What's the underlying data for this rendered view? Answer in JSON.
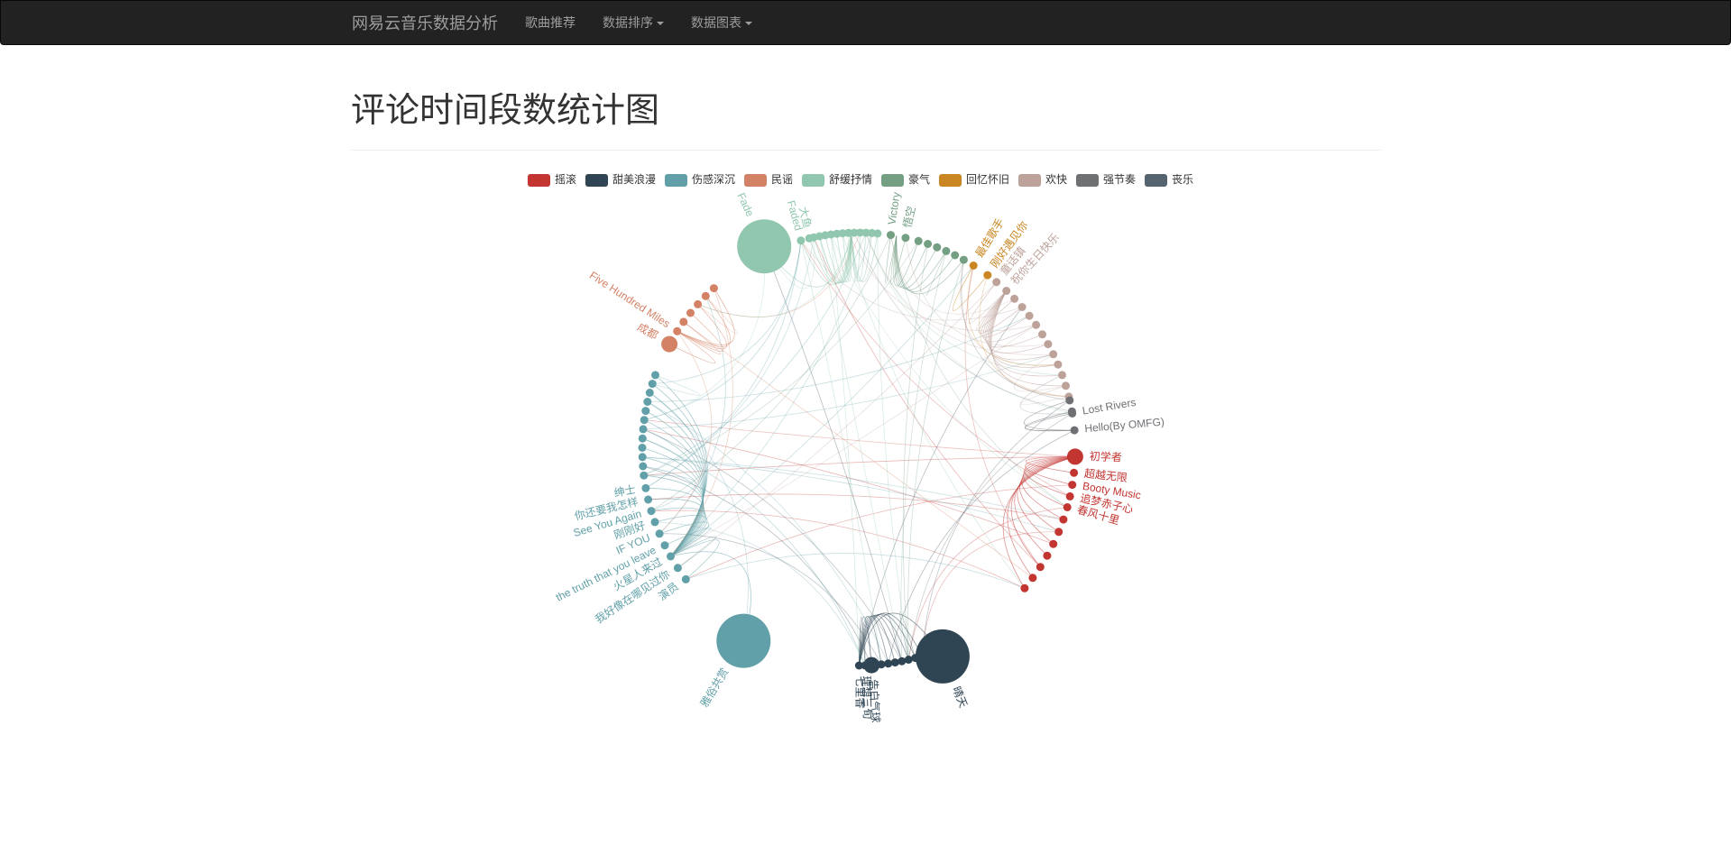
{
  "navbar": {
    "brand": "网易云音乐数据分析",
    "items": [
      {
        "label": "歌曲推荐",
        "dropdown": false
      },
      {
        "label": "数据排序",
        "dropdown": true
      },
      {
        "label": "数据图表",
        "dropdown": true
      }
    ]
  },
  "page": {
    "title": "评论时间段数统计图"
  },
  "chart_data": {
    "type": "graph-circular",
    "legend_position": "top",
    "categories": [
      {
        "name": "摇滚",
        "color": "#c23531"
      },
      {
        "name": "甜美浪漫",
        "color": "#2f4554"
      },
      {
        "name": "伤感深沉",
        "color": "#61a0a8"
      },
      {
        "name": "民谣",
        "color": "#d48265"
      },
      {
        "name": "舒缓抒情",
        "color": "#91c7ae"
      },
      {
        "name": "豪气",
        "color": "#749f83"
      },
      {
        "name": "回忆怀旧",
        "color": "#ca8622"
      },
      {
        "name": "欢快",
        "color": "#bda29a"
      },
      {
        "name": "强节奏",
        "color": "#6e7074"
      },
      {
        "name": "丧乐",
        "color": "#546570"
      }
    ],
    "labeled_nodes": [
      {
        "name": "初学者",
        "category": "摇滚",
        "size": "medium"
      },
      {
        "name": "超越无限",
        "category": "摇滚",
        "size": "small"
      },
      {
        "name": "Booty Music",
        "category": "摇滚",
        "size": "small"
      },
      {
        "name": "追梦赤子心",
        "category": "摇滚",
        "size": "small"
      },
      {
        "name": "春风十里",
        "category": "摇滚",
        "size": "small"
      },
      {
        "name": "晴天",
        "category": "甜美浪漫",
        "size": "large"
      },
      {
        "name": "告白气球",
        "category": "甜美浪漫",
        "size": "medium"
      },
      {
        "name": "理想三旬",
        "category": "甜美浪漫",
        "size": "small"
      },
      {
        "name": "七里香",
        "category": "甜美浪漫",
        "size": "small"
      },
      {
        "name": "雅俗共赏",
        "category": "伤感深沉",
        "size": "large"
      },
      {
        "name": "演员",
        "category": "伤感深沉",
        "size": "small"
      },
      {
        "name": "我好像在哪见过你",
        "category": "伤感深沉",
        "size": "small"
      },
      {
        "name": "火星人来过",
        "category": "伤感深沉",
        "size": "small"
      },
      {
        "name": "the truth that you leave",
        "category": "伤感深沉",
        "size": "small"
      },
      {
        "name": "IF YOU",
        "category": "伤感深沉",
        "size": "small"
      },
      {
        "name": "刚刚好",
        "category": "伤感深沉",
        "size": "small"
      },
      {
        "name": "See You Again",
        "category": "伤感深沉",
        "size": "small"
      },
      {
        "name": "你还要我怎样",
        "category": "伤感深沉",
        "size": "small"
      },
      {
        "name": "绅士",
        "category": "伤感深沉",
        "size": "small"
      },
      {
        "name": "成都",
        "category": "民谣",
        "size": "medium"
      },
      {
        "name": "Five Hundred Miles",
        "category": "民谣",
        "size": "small"
      },
      {
        "name": "Fade",
        "category": "舒缓抒情",
        "size": "large"
      },
      {
        "name": "Faded",
        "category": "舒缓抒情",
        "size": "small"
      },
      {
        "name": "大鱼",
        "category": "舒缓抒情",
        "size": "small"
      },
      {
        "name": "Victory",
        "category": "豪气",
        "size": "small"
      },
      {
        "name": "悟空",
        "category": "豪气",
        "size": "small"
      },
      {
        "name": "最佳歌手",
        "category": "回忆怀旧",
        "size": "small"
      },
      {
        "name": "刚好遇见你",
        "category": "回忆怀旧",
        "size": "small"
      },
      {
        "name": "童话镇",
        "category": "欢快",
        "size": "small"
      },
      {
        "name": "祝你生日快乐",
        "category": "欢快",
        "size": "small"
      },
      {
        "name": "Lost Rivers",
        "category": "强节奏",
        "size": "small"
      },
      {
        "name": "Hello(By OMFG)",
        "category": "强节奏",
        "size": "small"
      }
    ]
  }
}
